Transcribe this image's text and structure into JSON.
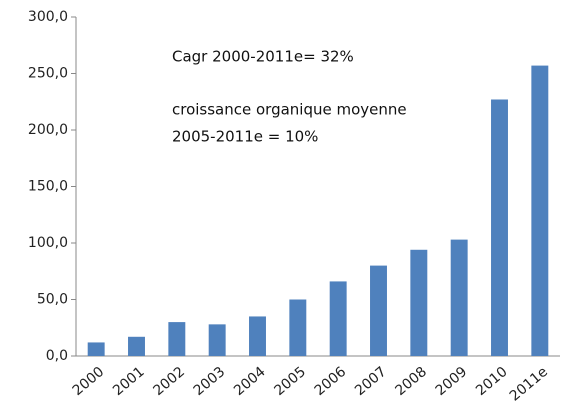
{
  "chart_data": {
    "type": "bar",
    "categories": [
      "2000",
      "2001",
      "2002",
      "2003",
      "2004",
      "2005",
      "2006",
      "2007",
      "2008",
      "2009",
      "2010",
      "2011e"
    ],
    "values": [
      12,
      17,
      30,
      28,
      35,
      50,
      66,
      80,
      94,
      103,
      227,
      257
    ],
    "color": "#4f81bd",
    "ylim": [
      0,
      300
    ],
    "yticks": [
      {
        "value": 0,
        "label": "0,0"
      },
      {
        "value": 50,
        "label": "50,0"
      },
      {
        "value": 100,
        "label": "100,0"
      },
      {
        "value": 150,
        "label": "150,0"
      },
      {
        "value": 200,
        "label": "200,0"
      },
      {
        "value": 250,
        "label": "250,0"
      },
      {
        "value": 300,
        "label": "300,0"
      }
    ],
    "grid": false,
    "annotations": [
      "Cagr 2000-2011e= 32%",
      "croissance organique moyenne",
      "2005-2011e = 10%"
    ]
  }
}
